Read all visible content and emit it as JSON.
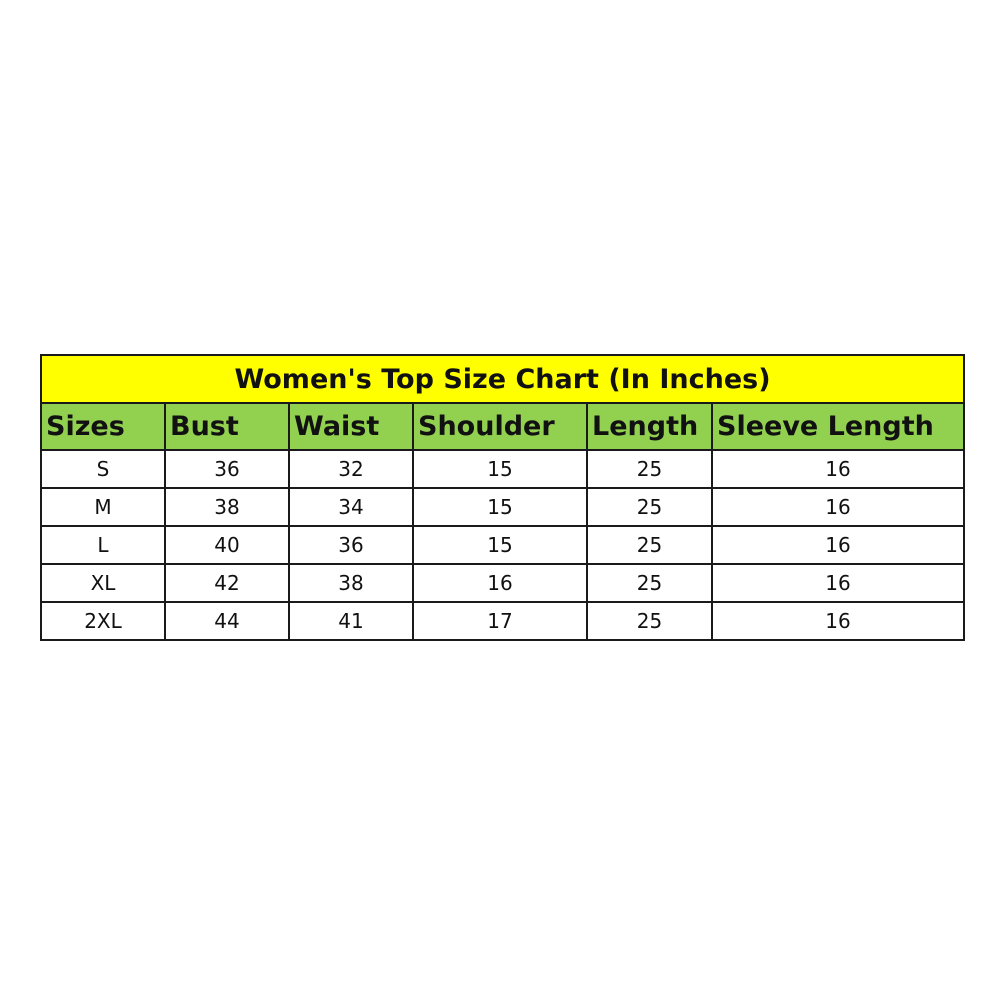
{
  "title": "Women's Top Size Chart (In Inches)",
  "colors": {
    "title_bg": "#ffff00",
    "header_bg": "#92d050",
    "border": "#1a1a1a"
  },
  "headers": [
    "Sizes",
    "Bust",
    "Waist",
    "Shoulder",
    "Length",
    "Sleeve Length"
  ],
  "rows": [
    [
      "S",
      "36",
      "32",
      "15",
      "25",
      "16"
    ],
    [
      "M",
      "38",
      "34",
      "15",
      "25",
      "16"
    ],
    [
      "L",
      "40",
      "36",
      "15",
      "25",
      "16"
    ],
    [
      "XL",
      "42",
      "38",
      "16",
      "25",
      "16"
    ],
    [
      "2XL",
      "44",
      "41",
      "17",
      "25",
      "16"
    ]
  ]
}
